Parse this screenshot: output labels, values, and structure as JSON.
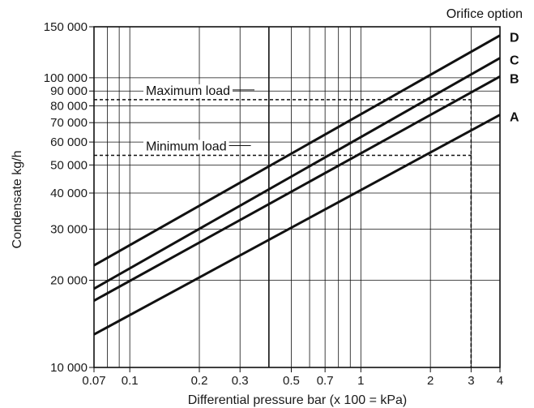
{
  "chart_data": {
    "type": "line",
    "title": "",
    "legend_title": "Orifice option",
    "xlabel": "Differential pressure bar (x 100 = kPa)",
    "ylabel": "Condensate kg/h",
    "x_scale": "log",
    "y_scale": "log",
    "xlim": [
      0.07,
      4
    ],
    "ylim": [
      10000,
      150000
    ],
    "x_ticks": [
      0.07,
      0.1,
      0.2,
      0.3,
      0.5,
      0.7,
      1,
      2,
      3,
      4
    ],
    "x_tick_labels": [
      "0.07",
      "0.1",
      "0.2",
      "0.3",
      "0.5",
      "0.7",
      "1",
      "2",
      "3",
      "4"
    ],
    "y_ticks": [
      10000,
      20000,
      30000,
      40000,
      50000,
      60000,
      70000,
      80000,
      90000,
      100000,
      150000
    ],
    "y_tick_labels": [
      "10 000",
      "20 000",
      "30 000",
      "40 000",
      "50 000",
      "60 000",
      "70 000",
      "80 000",
      "90 000",
      "100 000",
      "150 000"
    ],
    "grid": true,
    "series": [
      {
        "name": "D",
        "x": [
          0.07,
          4
        ],
        "y": [
          22500,
          140000
        ]
      },
      {
        "name": "C",
        "x": [
          0.07,
          4
        ],
        "y": [
          18700,
          117000
        ]
      },
      {
        "name": "B",
        "x": [
          0.07,
          4
        ],
        "y": [
          17000,
          101000
        ]
      },
      {
        "name": "A",
        "x": [
          0.07,
          4
        ],
        "y": [
          13000,
          74500
        ]
      }
    ],
    "annotations": [
      {
        "label": "Maximum load",
        "y": 84000,
        "x_end": 3
      },
      {
        "label": "Minimum load",
        "y": 54000,
        "x_end": 3
      }
    ]
  }
}
